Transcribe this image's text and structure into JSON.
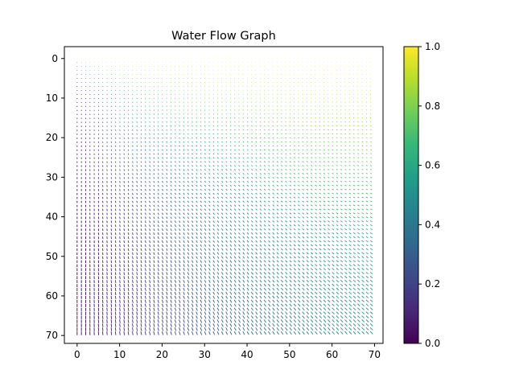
{
  "chart_data": {
    "type": "quiver",
    "title": "Water Flow Graph",
    "xlabel": "",
    "ylabel": "",
    "grid_size": 70,
    "grid_step": 1,
    "xlim": [
      -3,
      72
    ],
    "ylim": [
      72,
      -3
    ],
    "y_inverted": true,
    "xticks": [
      0,
      10,
      20,
      30,
      40,
      50,
      60,
      70
    ],
    "yticks": [
      0,
      10,
      20,
      30,
      40,
      50,
      60,
      70
    ],
    "vector_field": "direction (x, y)/sqrt(x^2+y^2); color value = angle from vertical, normalized 0 (pointing down) to 1 (pointing right); magnitude grows with y",
    "grid": false,
    "colorbar": {
      "colormap": "viridis",
      "range": [
        0,
        1
      ],
      "ticks": [
        "0.0",
        "0.2",
        "0.4",
        "0.6",
        "0.8",
        "1.0"
      ],
      "colors": [
        "#440154",
        "#482878",
        "#3e4989",
        "#31688e",
        "#26828e",
        "#1f9e89",
        "#35b779",
        "#6ece58",
        "#b5de2b",
        "#fde725"
      ]
    }
  }
}
